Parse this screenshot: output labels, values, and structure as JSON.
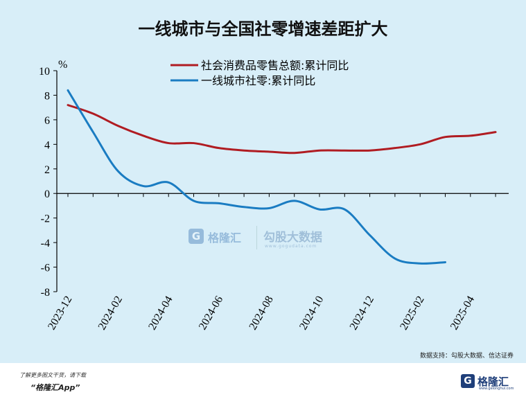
{
  "chart_data": {
    "type": "line",
    "title": "一线城市与全国社零增速差距扩大",
    "ylabel": "%",
    "ylim": [
      -8,
      10
    ],
    "yticks": [
      10,
      8,
      6,
      4,
      2,
      0,
      -2,
      -4,
      -6,
      -8
    ],
    "x_tick_labels": [
      "2023-12",
      "2024-02",
      "2024-04",
      "2024-06",
      "2024-08",
      "2024-10",
      "2024-12",
      "2025-02",
      "2025-04"
    ],
    "x": [
      "2023-12",
      "2024-01",
      "2024-02",
      "2024-03",
      "2024-04",
      "2024-05",
      "2024-06",
      "2024-07",
      "2024-08",
      "2024-09",
      "2024-10",
      "2024-11",
      "2024-12",
      "2025-01",
      "2025-02",
      "2025-03",
      "2025-04",
      "2025-05"
    ],
    "series": [
      {
        "name": "社会消费品零售总额:累计同比",
        "color": "#b01c22",
        "values": [
          7.2,
          6.5,
          5.5,
          4.7,
          4.1,
          4.1,
          3.7,
          3.5,
          3.4,
          3.3,
          3.5,
          3.5,
          3.5,
          3.7,
          4.0,
          4.6,
          4.7,
          5.0
        ]
      },
      {
        "name": "一线城市社零:累计同比",
        "color": "#1a7cc2",
        "values": [
          8.4,
          5.0,
          1.8,
          0.6,
          0.9,
          -0.6,
          -0.8,
          -1.1,
          -1.2,
          -0.6,
          -1.3,
          -1.3,
          -3.4,
          -5.3,
          -5.7,
          -5.6,
          null,
          null
        ]
      }
    ],
    "grid": false,
    "legend": "top-center",
    "source": "数据支持：勾股大数据、信达证券"
  },
  "watermark": {
    "logo_char": "G",
    "brand": "格隆汇",
    "brand2": "勾股大数据",
    "url": "www.gogudata.com"
  },
  "footer": {
    "note1": "了解更多图文干货，请下载",
    "note2": "“格隆汇App”",
    "logo_char": "G",
    "logo_text": "格隆汇",
    "logo_url": "www.gelonghui.com"
  }
}
